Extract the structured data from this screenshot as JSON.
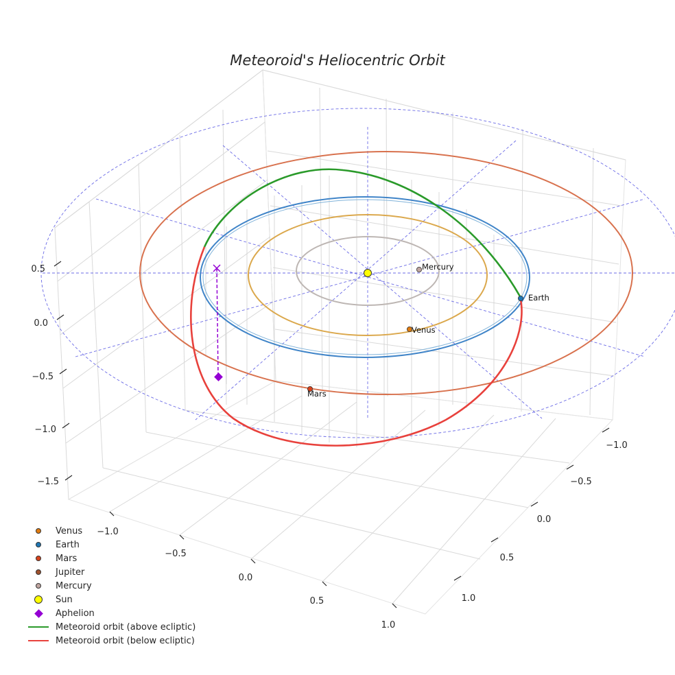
{
  "chart_data": {
    "type": "3d-orbit",
    "title": "Meteoroid's Heliocentric Orbit",
    "z_ticks": [
      "0.5",
      "0.0",
      "−0.5",
      "−1.0",
      "−1.5"
    ],
    "x_ticks": [
      "−1.0",
      "−0.5",
      "0.0",
      "0.5",
      "1.0"
    ],
    "y_ticks": [
      "−1.0",
      "−0.5",
      "0.0",
      "0.5",
      "1.0"
    ],
    "planet_orbits": [
      {
        "name": "Mercury",
        "a_au": 0.39,
        "color": "#bdb6b3"
      },
      {
        "name": "Venus",
        "a_au": 0.72,
        "color": "#dba84c"
      },
      {
        "name": "Earth",
        "a_au": 1.0,
        "color": "#3f84c8"
      },
      {
        "name": "Mars",
        "a_au": 1.52,
        "color": "#d8714d"
      }
    ],
    "planets": [
      {
        "name": "Venus",
        "label": "Venus",
        "color": "#e07b10"
      },
      {
        "name": "Earth",
        "label": "Earth",
        "color": "#1f77b4"
      },
      {
        "name": "Mars",
        "label": "Mars",
        "color": "#d8431c"
      },
      {
        "name": "Mercury",
        "label": "Mercury",
        "color": "#bfa5a0"
      }
    ],
    "meteoroid": {
      "above_color": "#2a9a2a",
      "below_color": "#e8413c",
      "aphelion_color": "#9400d3"
    },
    "grid": true,
    "legend_position": "bottom-left",
    "legend": [
      {
        "label": "Venus",
        "symbol": "dot",
        "color": "#e07b10"
      },
      {
        "label": "Earth",
        "symbol": "dot",
        "color": "#1f77b4"
      },
      {
        "label": "Mars",
        "symbol": "dot",
        "color": "#d8431c"
      },
      {
        "label": "Jupiter",
        "symbol": "dot",
        "color": "#a0522d"
      },
      {
        "label": "Mercury",
        "symbol": "dot",
        "color": "#bfa5a0"
      },
      {
        "label": "Sun",
        "symbol": "sun",
        "color": "#ffff00"
      },
      {
        "label": "Aphelion",
        "symbol": "diamond",
        "color": "#9400d3"
      },
      {
        "label": "Meteoroid orbit (above ecliptic)",
        "symbol": "line",
        "color": "#2a9a2a"
      },
      {
        "label": "Meteoroid orbit (below ecliptic)",
        "symbol": "line",
        "color": "#e8413c"
      }
    ]
  }
}
